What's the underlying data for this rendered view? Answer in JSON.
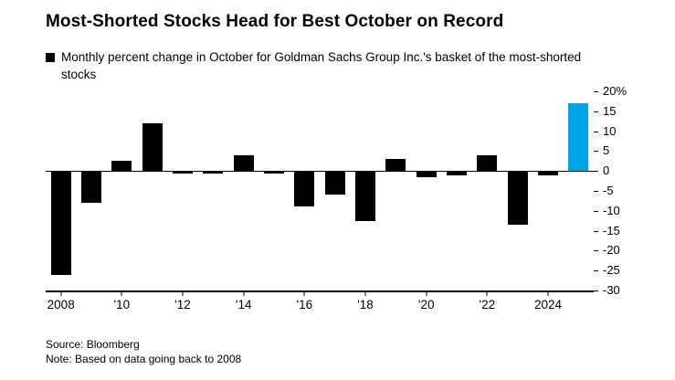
{
  "header": {
    "title": "Most-Shorted Stocks Head for Best October on Record",
    "legend_label": "Monthly percent change in October for Goldman Sachs Group Inc.'s basket of the most-shorted stocks"
  },
  "chart_data": {
    "type": "bar",
    "title": "Most-Shorted Stocks Head for Best October on Record",
    "x": [
      2008,
      2009,
      2010,
      2011,
      2012,
      2013,
      2014,
      2015,
      2016,
      2017,
      2018,
      2019,
      2020,
      2021,
      2022,
      2023,
      2024,
      2025
    ],
    "values": [
      -26,
      -8,
      2.5,
      12,
      -0.7,
      -0.7,
      4,
      -0.7,
      -9,
      -6,
      -12.5,
      3,
      -1.5,
      -1,
      4,
      -13.5,
      -1,
      17
    ],
    "highlight_index": 17,
    "colors": {
      "bar": "#000000",
      "highlight": "#00a3e6"
    },
    "ylim": [
      -30,
      20
    ],
    "yticks": [
      20,
      15,
      10,
      5,
      0,
      -5,
      -10,
      -15,
      -20,
      -25,
      -30
    ],
    "ytick_labels": [
      "20%",
      "15",
      "10",
      "5",
      "0",
      "-5",
      "-10",
      "-15",
      "-20",
      "-25",
      "-30"
    ],
    "xticks": [
      {
        "index": 0,
        "label": "2008"
      },
      {
        "index": 2,
        "label": "'10"
      },
      {
        "index": 4,
        "label": "'12"
      },
      {
        "index": 6,
        "label": "'14"
      },
      {
        "index": 8,
        "label": "'16"
      },
      {
        "index": 10,
        "label": "'18"
      },
      {
        "index": 12,
        "label": "'20"
      },
      {
        "index": 14,
        "label": "'22"
      },
      {
        "index": 16,
        "label": "2024"
      }
    ],
    "legend": [
      {
        "label": "Monthly percent change in October for Goldman Sachs Group Inc.'s basket of the most-shorted stocks",
        "color": "#000000"
      }
    ],
    "grid": false,
    "legend_position": "top-left",
    "axis_side": "right",
    "xlabel": "",
    "ylabel": ""
  },
  "footer": {
    "source": "Source: Bloomberg",
    "note": "Note: Based on data going back to 2008"
  }
}
